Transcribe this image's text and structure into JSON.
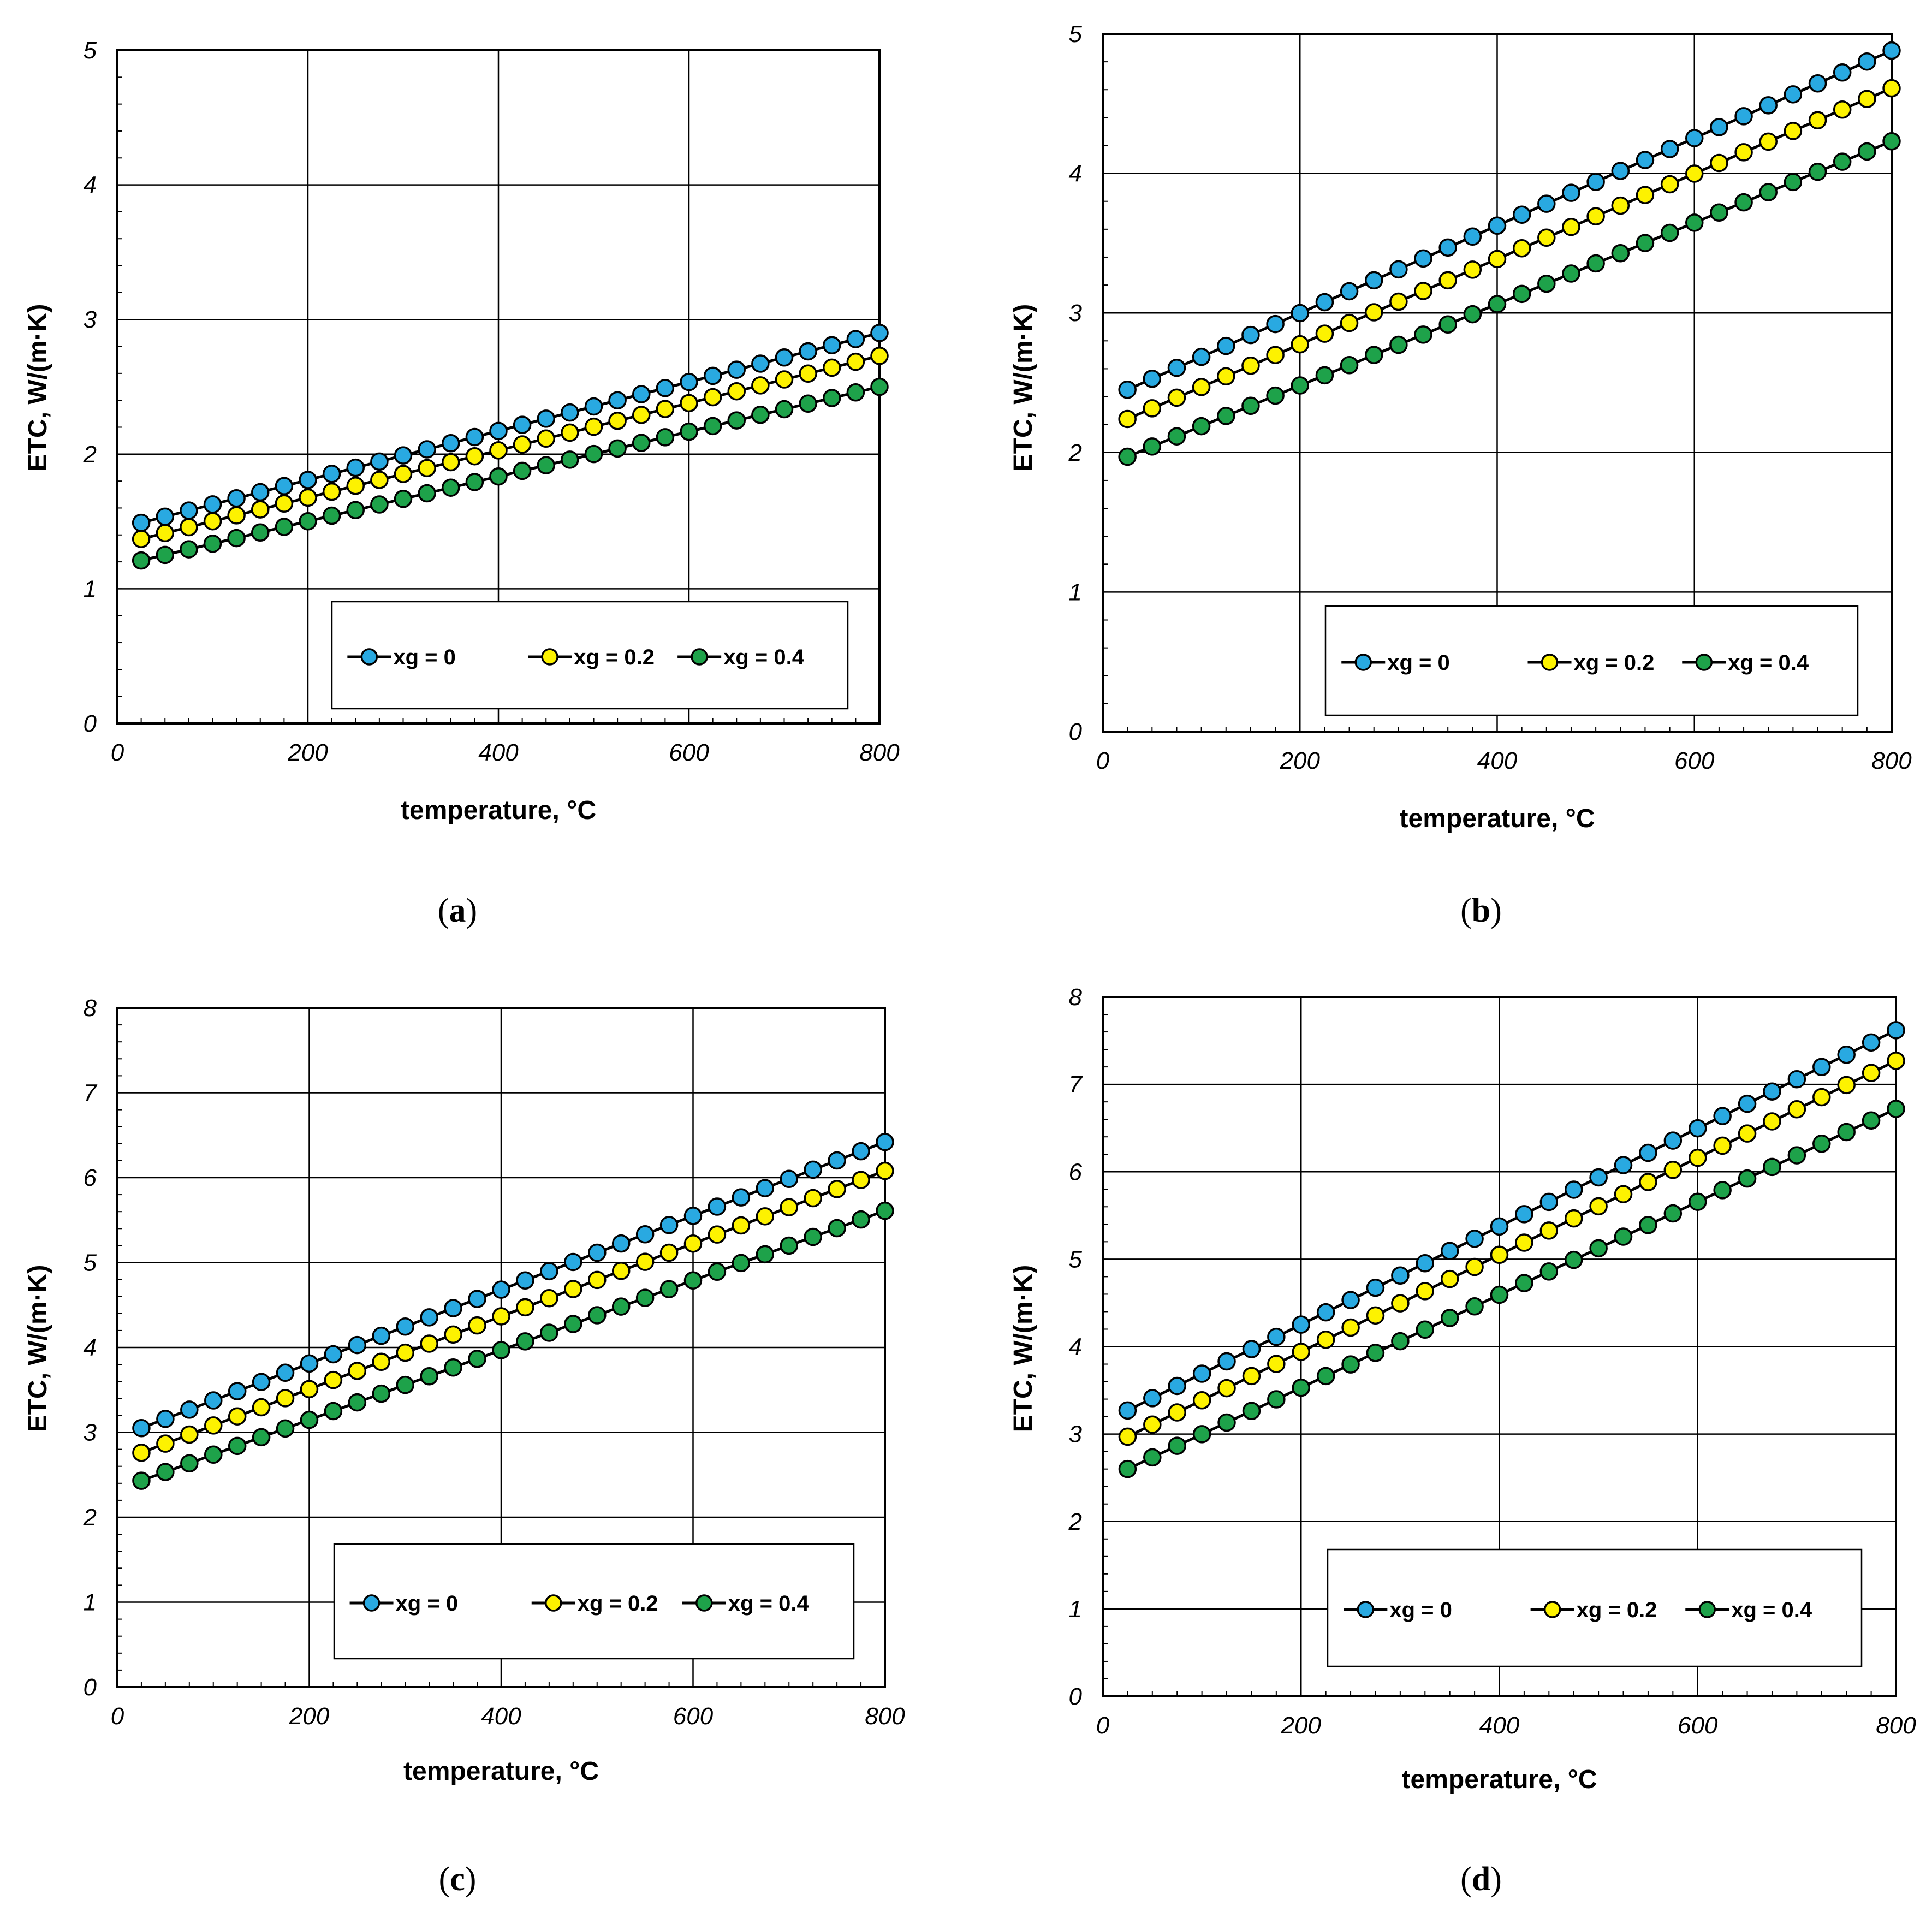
{
  "colors": {
    "xg0": "#29a9e1",
    "xg02": "#fdf200",
    "xg04": "#1ea24a",
    "line": "#000000",
    "grid": "#000000"
  },
  "chart_data": [
    {
      "type": "line",
      "caption": "a",
      "xlabel": "temperature, °C",
      "ylabel": "ETC,  W/(m·K)",
      "xlim": [
        0,
        800
      ],
      "ylim": [
        0,
        5
      ],
      "xticks": [
        0,
        200,
        400,
        600,
        800
      ],
      "yticks": [
        0,
        1,
        2,
        3,
        4,
        5
      ],
      "x": [
        25,
        50,
        75,
        100,
        125,
        150,
        175,
        200,
        225,
        250,
        275,
        300,
        325,
        350,
        375,
        400,
        425,
        450,
        475,
        500,
        525,
        550,
        575,
        600,
        625,
        650,
        675,
        700,
        725,
        750,
        775,
        800
      ],
      "legend": [
        "xg = 0",
        "xg = 0.2",
        "xg = 0.4"
      ],
      "series": [
        {
          "name": "xg = 0",
          "start": 1.49,
          "end": 2.9
        },
        {
          "name": "xg = 0.2",
          "start": 1.37,
          "end": 2.73
        },
        {
          "name": "xg = 0.4",
          "start": 1.21,
          "end": 2.5
        }
      ]
    },
    {
      "type": "line",
      "caption": "b",
      "xlabel": "temperature, °C",
      "ylabel": "ETC,  W/(m·K)",
      "xlim": [
        0,
        800
      ],
      "ylim": [
        0,
        5
      ],
      "xticks": [
        0,
        200,
        400,
        600,
        800
      ],
      "yticks": [
        0,
        1,
        2,
        3,
        4,
        5
      ],
      "x": [
        25,
        50,
        75,
        100,
        125,
        150,
        175,
        200,
        225,
        250,
        275,
        300,
        325,
        350,
        375,
        400,
        425,
        450,
        475,
        500,
        525,
        550,
        575,
        600,
        625,
        650,
        675,
        700,
        725,
        750,
        775,
        800
      ],
      "legend": [
        "xg = 0",
        "xg = 0.2",
        "xg = 0.4"
      ],
      "series": [
        {
          "name": "xg = 0",
          "start": 2.45,
          "end": 4.88
        },
        {
          "name": "xg = 0.2",
          "start": 2.24,
          "end": 4.61
        },
        {
          "name": "xg = 0.4",
          "start": 1.97,
          "end": 4.23
        }
      ]
    },
    {
      "type": "line",
      "caption": "c",
      "xlabel": "temperature, °C",
      "ylabel": "ETC,  W/(m·K)",
      "xlim": [
        0,
        800
      ],
      "ylim": [
        0,
        8
      ],
      "xticks": [
        0,
        200,
        400,
        600,
        800
      ],
      "yticks": [
        0,
        1,
        2,
        3,
        4,
        5,
        6,
        7,
        8
      ],
      "x": [
        25,
        50,
        75,
        100,
        125,
        150,
        175,
        200,
        225,
        250,
        275,
        300,
        325,
        350,
        375,
        400,
        425,
        450,
        475,
        500,
        525,
        550,
        575,
        600,
        625,
        650,
        675,
        700,
        725,
        750,
        775,
        800
      ],
      "legend": [
        "xg = 0",
        "xg = 0.2",
        "xg = 0.4"
      ],
      "series": [
        {
          "name": "xg = 0",
          "start": 3.05,
          "end": 6.42
        },
        {
          "name": "xg = 0.2",
          "start": 2.76,
          "end": 6.08
        },
        {
          "name": "xg = 0.4",
          "start": 2.43,
          "end": 5.61
        }
      ]
    },
    {
      "type": "line",
      "caption": "d",
      "xlabel": "temperature, °C",
      "ylabel": "ETC,  W/(m·K)",
      "xlim": [
        0,
        800
      ],
      "ylim": [
        0,
        8
      ],
      "xticks": [
        0,
        200,
        400,
        600,
        800
      ],
      "yticks": [
        0,
        1,
        2,
        3,
        4,
        5,
        6,
        7,
        8
      ],
      "x": [
        25,
        50,
        75,
        100,
        125,
        150,
        175,
        200,
        225,
        250,
        275,
        300,
        325,
        350,
        375,
        400,
        425,
        450,
        475,
        500,
        525,
        550,
        575,
        600,
        625,
        650,
        675,
        700,
        725,
        750,
        775,
        800
      ],
      "legend": [
        "xg = 0",
        "xg = 0.2",
        "xg = 0.4"
      ],
      "series": [
        {
          "name": "xg = 0",
          "start": 3.27,
          "end": 7.62
        },
        {
          "name": "xg = 0.2",
          "start": 2.97,
          "end": 7.27
        },
        {
          "name": "xg = 0.4",
          "start": 2.6,
          "end": 6.72
        }
      ]
    }
  ]
}
